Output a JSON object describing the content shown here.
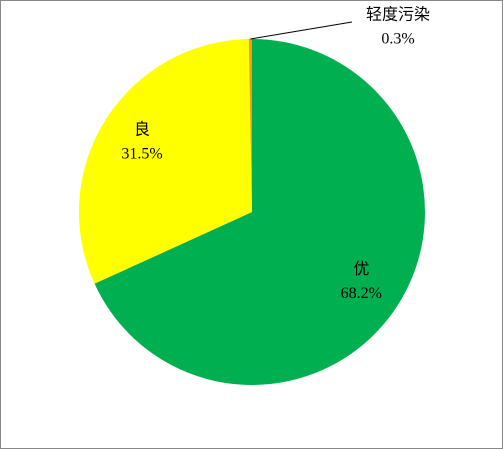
{
  "chart_data": {
    "type": "pie",
    "categories": [
      "优",
      "良",
      "轻度污染"
    ],
    "values": [
      68.2,
      31.5,
      0.3
    ],
    "value_labels": [
      "68.2%",
      "31.5%",
      "0.3%"
    ],
    "colors": [
      "#00b050",
      "#ffff00",
      "#ff9900"
    ]
  }
}
